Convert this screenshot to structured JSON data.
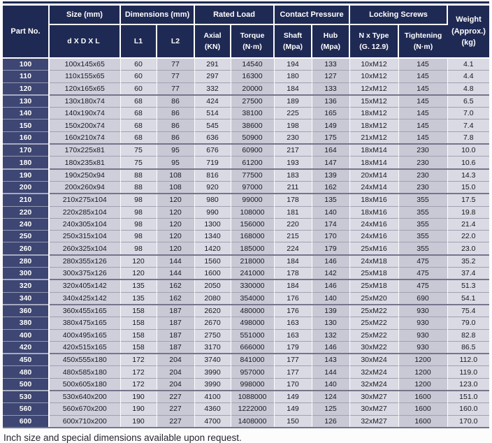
{
  "colors": {
    "header_bg": "#1f2a54",
    "part_cell_bg": "#3e4673",
    "row_line": "#a0a0b0",
    "group_line": "#75758c"
  },
  "table": {
    "headers": {
      "part_no": "Part No.",
      "size_group": "Size (mm)",
      "dxdxl": "dXDXL",
      "dimensions_group": "Dimensions (mm)",
      "l1": "L1",
      "l2": "L2",
      "rated_load_group": "Rated Load",
      "axial": "Axial\n(KN)",
      "torque": "Torque\n(N·m)",
      "contact_pressure_group": "Contact Pressure",
      "shaft": "Shaft\n(Mpa)",
      "hub": "Hub\n(Mpa)",
      "locking_screws_group": "Locking Screws",
      "n_x_type": "N x Type\n(G. 12.9)",
      "tightening": "Tightening\n(N·m)",
      "weight": "Weight\n(Approx.)\n(kg)"
    },
    "column_keys": [
      "part-no",
      "size",
      "l1",
      "l2",
      "axial",
      "torque",
      "shaft",
      "hub",
      "n-x-type",
      "tightening",
      "weight"
    ],
    "rows": [
      [
        "100",
        "100x145x65",
        "60",
        "77",
        "291",
        "14540",
        "194",
        "133",
        "10xM12",
        "145",
        "4.1"
      ],
      [
        "110",
        "110x155x65",
        "60",
        "77",
        "297",
        "16300",
        "180",
        "127",
        "10xM12",
        "145",
        "4.4"
      ],
      [
        "120",
        "120x165x65",
        "60",
        "77",
        "332",
        "20000",
        "184",
        "133",
        "12xM12",
        "145",
        "4.8"
      ],
      [
        "130",
        "130x180x74",
        "68",
        "86",
        "424",
        "27500",
        "189",
        "136",
        "15xM12",
        "145",
        "6.5"
      ],
      [
        "140",
        "140x190x74",
        "68",
        "86",
        "514",
        "38100",
        "225",
        "165",
        "18xM12",
        "145",
        "7.0"
      ],
      [
        "150",
        "150x200x74",
        "68",
        "86",
        "545",
        "38600",
        "198",
        "149",
        "18xM12",
        "145",
        "7.4"
      ],
      [
        "160",
        "160x210x74",
        "68",
        "86",
        "636",
        "50900",
        "230",
        "175",
        "21xM12",
        "145",
        "7.8"
      ],
      [
        "170",
        "170x225x81",
        "75",
        "95",
        "676",
        "60900",
        "217",
        "164",
        "18xM14",
        "230",
        "10.0"
      ],
      [
        "180",
        "180x235x81",
        "75",
        "95",
        "719",
        "61200",
        "193",
        "147",
        "18xM14",
        "230",
        "10.6"
      ],
      [
        "190",
        "190x250x94",
        "88",
        "108",
        "816",
        "77500",
        "183",
        "139",
        "20xM14",
        "230",
        "14.3"
      ],
      [
        "200",
        "200x260x94",
        "88",
        "108",
        "920",
        "97000",
        "211",
        "162",
        "24xM14",
        "230",
        "15.0"
      ],
      [
        "210",
        "210x275x104",
        "98",
        "120",
        "980",
        "99000",
        "178",
        "135",
        "18xM16",
        "355",
        "17.5"
      ],
      [
        "220",
        "220x285x104",
        "98",
        "120",
        "990",
        "108000",
        "181",
        "140",
        "18xM16",
        "355",
        "19.8"
      ],
      [
        "240",
        "240x305x104",
        "98",
        "120",
        "1300",
        "156000",
        "220",
        "174",
        "24xM16",
        "355",
        "21.4"
      ],
      [
        "250",
        "250x315x104",
        "98",
        "120",
        "1340",
        "168000",
        "215",
        "170",
        "24xM16",
        "355",
        "22.0"
      ],
      [
        "260",
        "260x325x104",
        "98",
        "120",
        "1420",
        "185000",
        "224",
        "179",
        "25xM16",
        "355",
        "23.0"
      ],
      [
        "280",
        "280x355x126",
        "120",
        "144",
        "1560",
        "218000",
        "184",
        "146",
        "24xM18",
        "475",
        "35.2"
      ],
      [
        "300",
        "300x375x126",
        "120",
        "144",
        "1600",
        "241000",
        "178",
        "142",
        "25xM18",
        "475",
        "37.4"
      ],
      [
        "320",
        "320x405x142",
        "135",
        "162",
        "2050",
        "330000",
        "184",
        "146",
        "25xM18",
        "475",
        "51.3"
      ],
      [
        "340",
        "340x425x142",
        "135",
        "162",
        "2080",
        "354000",
        "176",
        "140",
        "25xM20",
        "690",
        "54.1"
      ],
      [
        "360",
        "360x455x165",
        "158",
        "187",
        "2620",
        "480000",
        "176",
        "139",
        "25xM22",
        "930",
        "75.4"
      ],
      [
        "380",
        "380x475x165",
        "158",
        "187",
        "2670",
        "498000",
        "163",
        "130",
        "25xM22",
        "930",
        "79.0"
      ],
      [
        "400",
        "400x495x165",
        "158",
        "187",
        "2750",
        "551000",
        "163",
        "132",
        "25xM22",
        "930",
        "82.8"
      ],
      [
        "420",
        "420x515x165",
        "158",
        "187",
        "3170",
        "666000",
        "179",
        "146",
        "30xM22",
        "930",
        "86.5"
      ],
      [
        "450",
        "450x555x180",
        "172",
        "204",
        "3740",
        "841000",
        "177",
        "143",
        "30xM24",
        "1200",
        "112.0"
      ],
      [
        "480",
        "480x585x180",
        "172",
        "204",
        "3990",
        "957000",
        "177",
        "144",
        "32xM24",
        "1200",
        "119.0"
      ],
      [
        "500",
        "500x605x180",
        "172",
        "204",
        "3990",
        "998000",
        "170",
        "140",
        "32xM24",
        "1200",
        "123.0"
      ],
      [
        "530",
        "530x640x200",
        "190",
        "227",
        "4100",
        "1088000",
        "149",
        "124",
        "30xM27",
        "1600",
        "151.0"
      ],
      [
        "560",
        "560x670x200",
        "190",
        "227",
        "4360",
        "1222000",
        "149",
        "125",
        "30xM27",
        "1600",
        "160.0"
      ],
      [
        "600",
        "600x710x200",
        "190",
        "227",
        "4700",
        "1408000",
        "150",
        "126",
        "32xM27",
        "1600",
        "170.0"
      ]
    ]
  },
  "footer": {
    "note": "Inch size and special dimensions available upon request."
  }
}
